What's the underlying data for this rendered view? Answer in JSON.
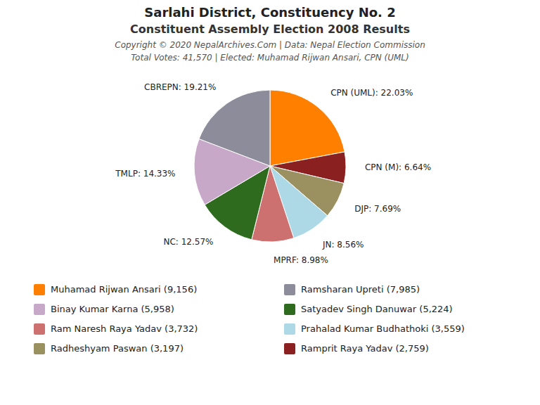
{
  "chart_data": {
    "type": "pie",
    "title": "Sarlahi District, Constituency No. 2",
    "subtitle": "Constituent Assembly Election 2008 Results",
    "annotations": [
      "Copyright © 2020 NepalArchives.Com | Data: Nepal Election Commission",
      "Total Votes: 41,570 | Elected: Muhamad Rijwan Ansari, CPN (UML)"
    ],
    "categories": [
      "CPN (UML): 22.03%",
      "CPN (M): 6.64%",
      "DJP: 7.69%",
      "JN: 8.56%",
      "MPRF: 8.98%",
      "NC: 12.57%",
      "TMLP: 14.33%",
      "CBREPN: 19.21%"
    ],
    "values": [
      22.03,
      6.64,
      7.69,
      8.56,
      8.98,
      12.57,
      14.33,
      19.21
    ],
    "colors": [
      "#FF7F00",
      "#8B2020",
      "#9B9060",
      "#ADD8E6",
      "#CD7070",
      "#2E6B1E",
      "#C8A8C8",
      "#8C8C9A"
    ],
    "legend_items": [
      {
        "label": "Muhamad Rijwan Ansari (9,156)",
        "color": "#FF7F00"
      },
      {
        "label": "Binay Kumar Karna (5,958)",
        "color": "#C8A8C8"
      },
      {
        "label": "Ram Naresh Raya Yadav (3,732)",
        "color": "#CD7070"
      },
      {
        "label": "Radheshyam Paswan (3,197)",
        "color": "#9B9060"
      },
      {
        "label": "Ramsharan Upreti (7,985)",
        "color": "#8C8C9A"
      },
      {
        "label": "Satyadev Singh Danuwar (5,224)",
        "color": "#2E6B1E"
      },
      {
        "label": "Prahalad Kumar Budhathoki (3,559)",
        "color": "#ADD8E6"
      },
      {
        "label": "Ramprit Raya Yadav (2,759)",
        "color": "#8B2020"
      }
    ]
  }
}
